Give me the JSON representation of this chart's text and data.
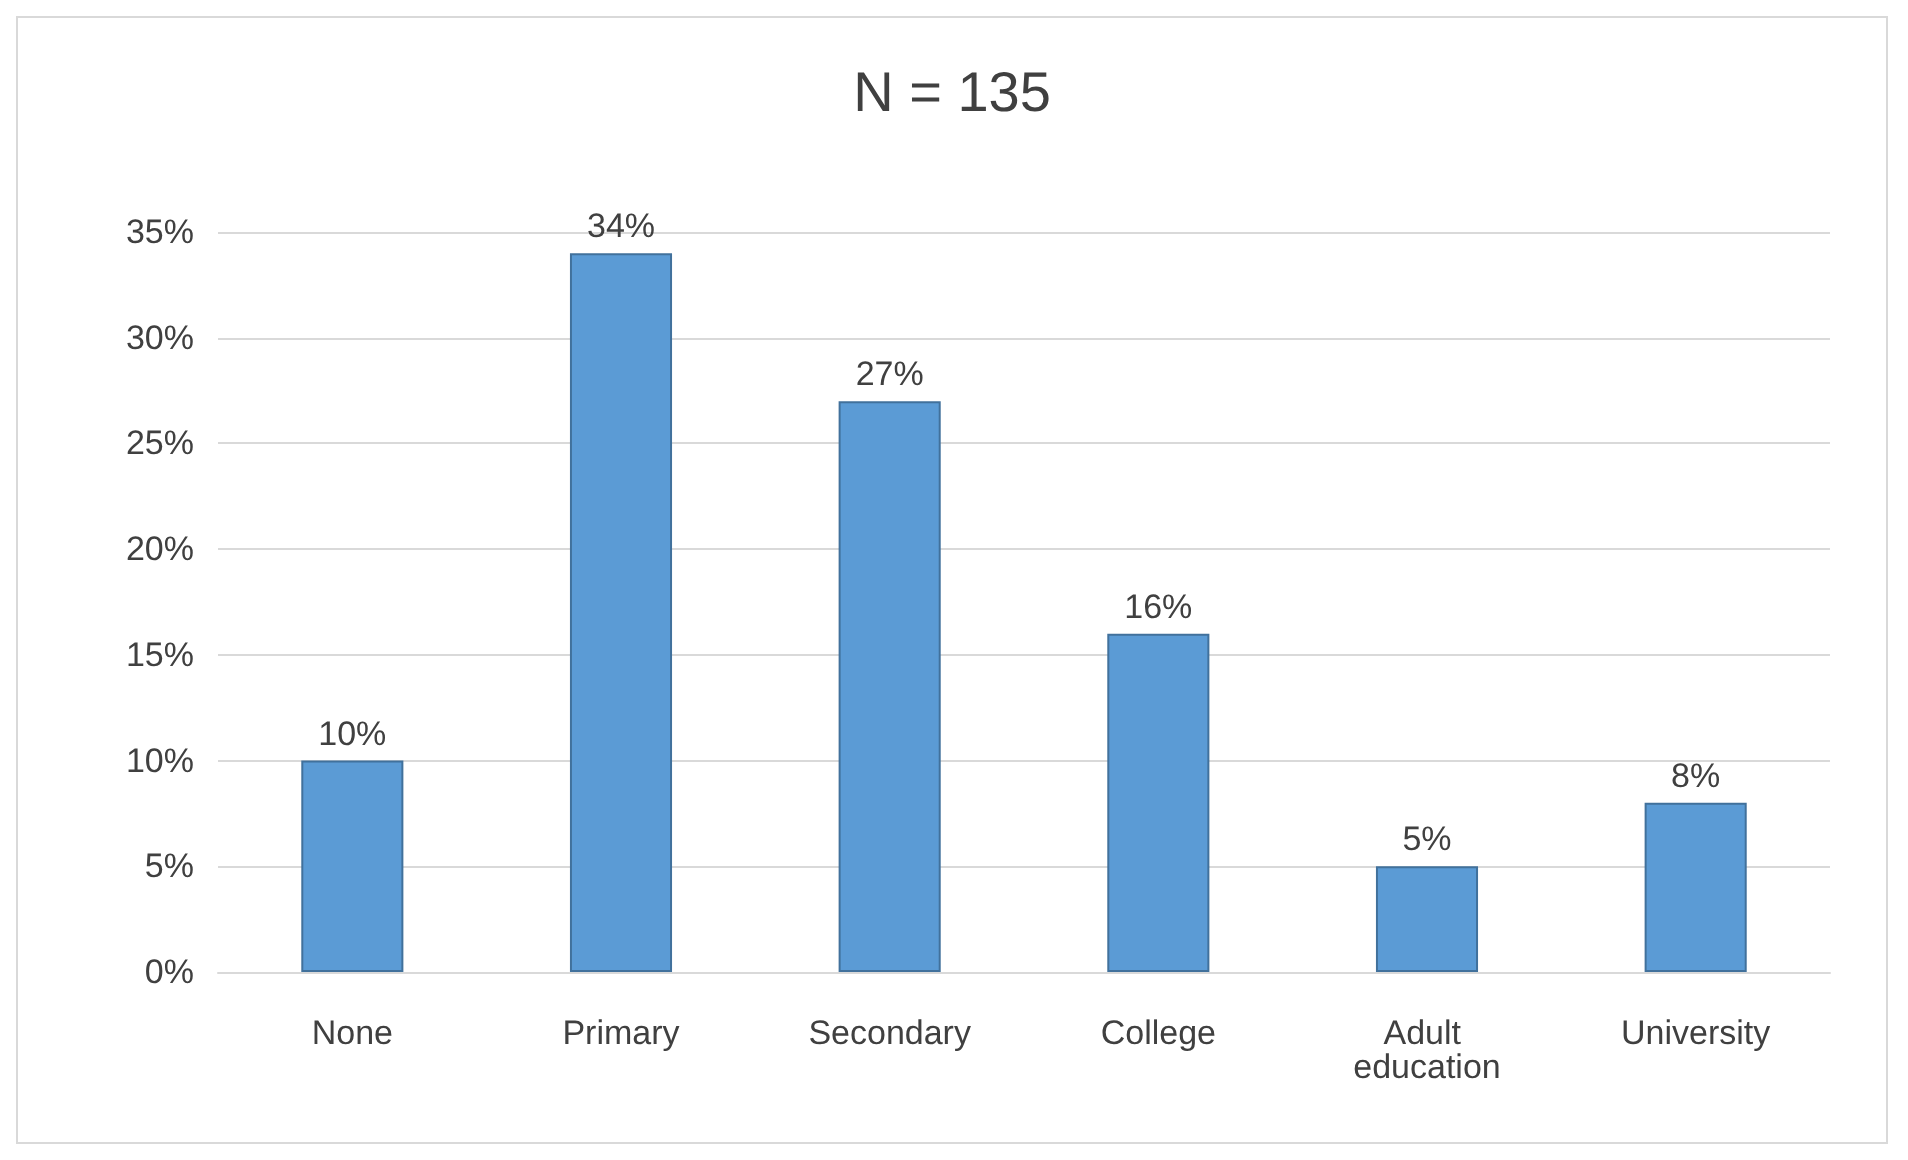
{
  "chart_data": {
    "type": "bar",
    "title": "N = 135",
    "categories": [
      "None",
      "Primary",
      "Secondary",
      "College",
      "Adult education",
      "University"
    ],
    "values": [
      10,
      34,
      27,
      16,
      5,
      8
    ],
    "value_labels": [
      "10%",
      "34%",
      "27%",
      "16%",
      "5%",
      "8%"
    ],
    "color": "#5b9bd5",
    "ylim": [
      0,
      35
    ],
    "yticks": [
      {
        "value": 0,
        "label": "0%"
      },
      {
        "value": 5,
        "label": "5%"
      },
      {
        "value": 10,
        "label": "10%"
      },
      {
        "value": 15,
        "label": "15%"
      },
      {
        "value": 20,
        "label": "20%"
      },
      {
        "value": 25,
        "label": "25%"
      },
      {
        "value": 30,
        "label": "30%"
      },
      {
        "value": 35,
        "label": "35%"
      }
    ],
    "grid": "y"
  }
}
